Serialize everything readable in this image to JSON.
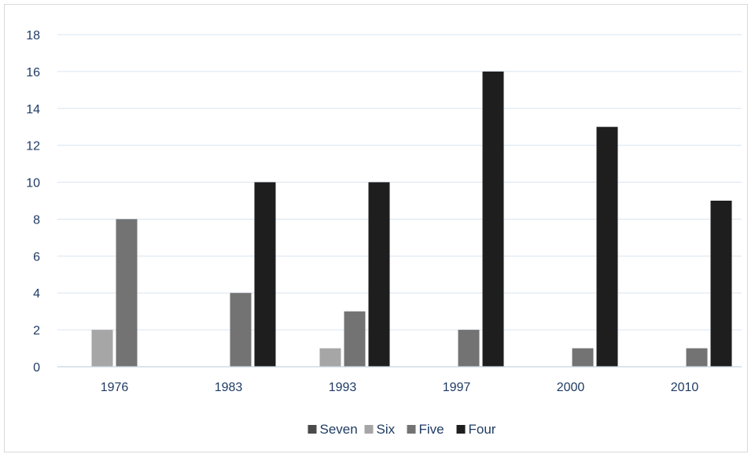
{
  "chart_data": {
    "type": "bar",
    "title": "",
    "xlabel": "",
    "ylabel": "",
    "categories": [
      "1976",
      "1983",
      "1993",
      "1997",
      "2000",
      "2010"
    ],
    "series": [
      {
        "name": "Seven",
        "color": "#4a4a4a",
        "values": [
          0,
          0,
          0,
          0,
          0,
          0
        ]
      },
      {
        "name": "Six",
        "color": "#a6a6a6",
        "values": [
          2,
          0,
          1,
          0,
          0,
          0
        ]
      },
      {
        "name": "Five",
        "color": "#737373",
        "values": [
          8,
          4,
          3,
          2,
          1,
          1
        ]
      },
      {
        "name": "Four",
        "color": "#1e1e1e",
        "values": [
          0,
          10,
          10,
          16,
          13,
          9
        ]
      }
    ],
    "ylim": [
      0,
      18
    ],
    "yticks": [
      0,
      2,
      4,
      6,
      8,
      10,
      12,
      14,
      16,
      18
    ],
    "grid": true,
    "legend_position": "bottom"
  }
}
